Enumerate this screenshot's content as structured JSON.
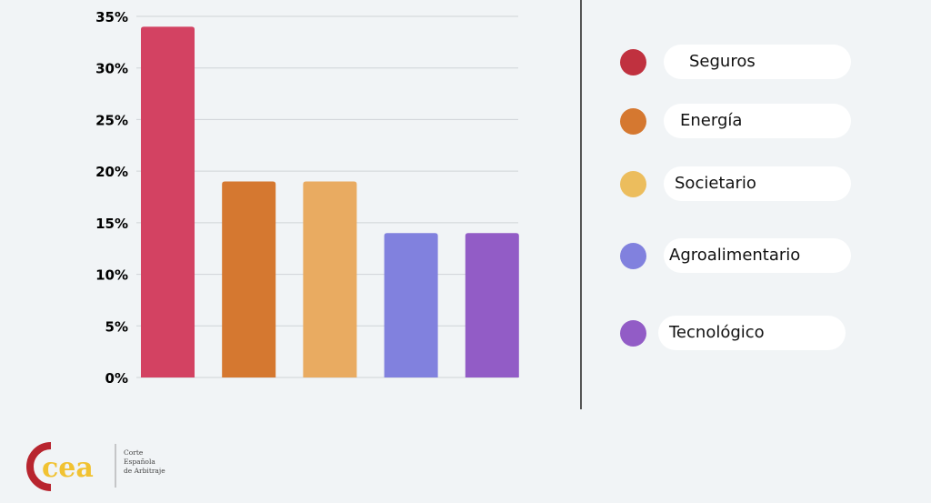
{
  "chart_data": {
    "type": "bar",
    "title": "",
    "xlabel": "",
    "ylabel": "",
    "categories": [
      "Seguros",
      "Energía",
      "Societario",
      "Agroalimentario",
      "Tecnológico"
    ],
    "values": [
      34,
      19,
      19,
      14,
      14
    ],
    "colors": [
      "#d34262",
      "#d57830",
      "#e9ab61",
      "#8181de",
      "#925cc6"
    ],
    "ylim": [
      0,
      35
    ],
    "yticks": [
      0,
      5,
      10,
      15,
      20,
      25,
      30,
      35
    ],
    "ytick_labels": [
      "0%",
      "5%",
      "10%",
      "15%",
      "20%",
      "25%",
      "30%",
      "35%"
    ],
    "grid": true,
    "legend_placement": "right"
  },
  "legend": {
    "items": [
      {
        "label": "Seguros",
        "color": "#c0313f"
      },
      {
        "label": "Energía",
        "color": "#d57830"
      },
      {
        "label": "Societario",
        "color": "#ecbd5d"
      },
      {
        "label": "Agroalimentario",
        "color": "#8181de"
      },
      {
        "label": "Tecnológico",
        "color": "#925cc6"
      }
    ]
  },
  "logo": {
    "mark": "cea",
    "line1": "Corte",
    "line2": "Española",
    "line3": "de Arbitraje"
  }
}
